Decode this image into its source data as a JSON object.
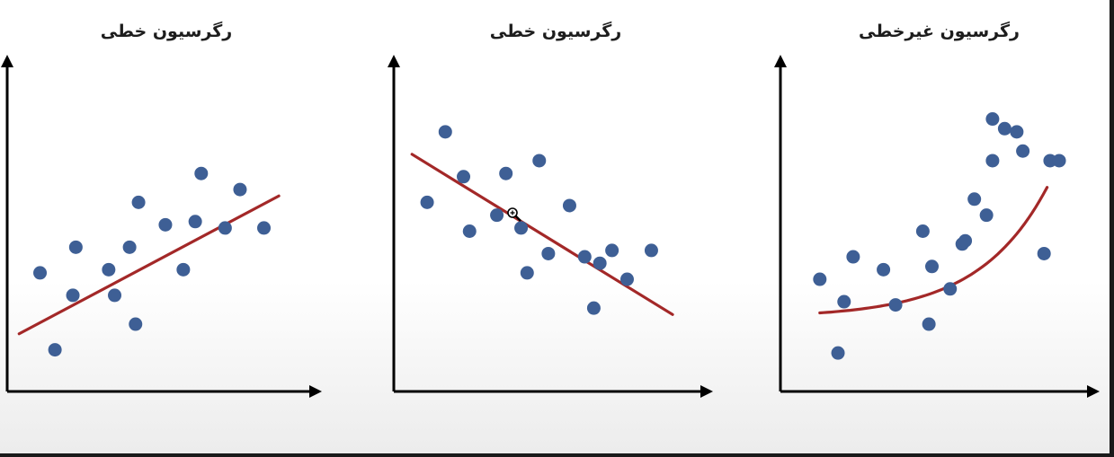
{
  "colors": {
    "points": "#3e5f95",
    "fit_line": "#a32828",
    "axes": "#000000",
    "title": "#1d1d1d"
  },
  "chart_data": [
    {
      "type": "scatter",
      "title": "رگرسیون خطی",
      "xlabel": "",
      "ylabel": "",
      "xlim": [
        0,
        100
      ],
      "ylim": [
        0,
        100
      ],
      "grid": false,
      "points": [
        [
          11,
          37
        ],
        [
          16,
          13
        ],
        [
          22,
          30
        ],
        [
          23,
          45
        ],
        [
          34,
          38
        ],
        [
          36,
          30
        ],
        [
          41,
          45
        ],
        [
          43,
          21
        ],
        [
          44,
          59
        ],
        [
          53,
          52
        ],
        [
          59,
          38
        ],
        [
          63,
          53
        ],
        [
          65,
          68
        ],
        [
          73,
          51
        ],
        [
          78,
          63
        ],
        [
          86,
          51
        ]
      ],
      "fit": {
        "kind": "linear",
        "from": [
          4,
          18
        ],
        "to": [
          91,
          61
        ]
      }
    },
    {
      "type": "scatter",
      "title": "رگرسیون خطی",
      "xlabel": "",
      "ylabel": "",
      "xlim": [
        0,
        100
      ],
      "ylim": [
        0,
        100
      ],
      "grid": false,
      "points": [
        [
          11,
          59
        ],
        [
          17,
          81
        ],
        [
          23,
          67
        ],
        [
          25,
          50
        ],
        [
          34,
          55
        ],
        [
          37,
          68
        ],
        [
          42,
          51
        ],
        [
          44,
          37
        ],
        [
          48,
          72
        ],
        [
          51,
          43
        ],
        [
          58,
          58
        ],
        [
          63,
          42
        ],
        [
          66,
          26
        ],
        [
          68,
          40
        ],
        [
          72,
          44
        ],
        [
          77,
          35
        ],
        [
          85,
          44
        ]
      ],
      "fit": {
        "kind": "linear",
        "from": [
          6,
          74
        ],
        "to": [
          92,
          24
        ]
      }
    },
    {
      "type": "scatter",
      "title": "رگرسیون غیرخطی",
      "xlabel": "",
      "ylabel": "",
      "xlim": [
        0,
        100
      ],
      "ylim": [
        0,
        100
      ],
      "grid": false,
      "points": [
        [
          13,
          35
        ],
        [
          19,
          12
        ],
        [
          21,
          28
        ],
        [
          24,
          42
        ],
        [
          34,
          38
        ],
        [
          38,
          27
        ],
        [
          47,
          50
        ],
        [
          49,
          21
        ],
        [
          50,
          39
        ],
        [
          56,
          32
        ],
        [
          60,
          46
        ],
        [
          61,
          47
        ],
        [
          64,
          60
        ],
        [
          68,
          55
        ],
        [
          70,
          72
        ],
        [
          70,
          85
        ],
        [
          74,
          82
        ],
        [
          78,
          81
        ],
        [
          80,
          75
        ],
        [
          87,
          43
        ],
        [
          89,
          72
        ],
        [
          92,
          72
        ]
      ],
      "fit": {
        "kind": "exponential",
        "a": 23,
        "b": 1.5,
        "c": 3.3,
        "xrange": [
          13,
          88
        ]
      }
    }
  ]
}
